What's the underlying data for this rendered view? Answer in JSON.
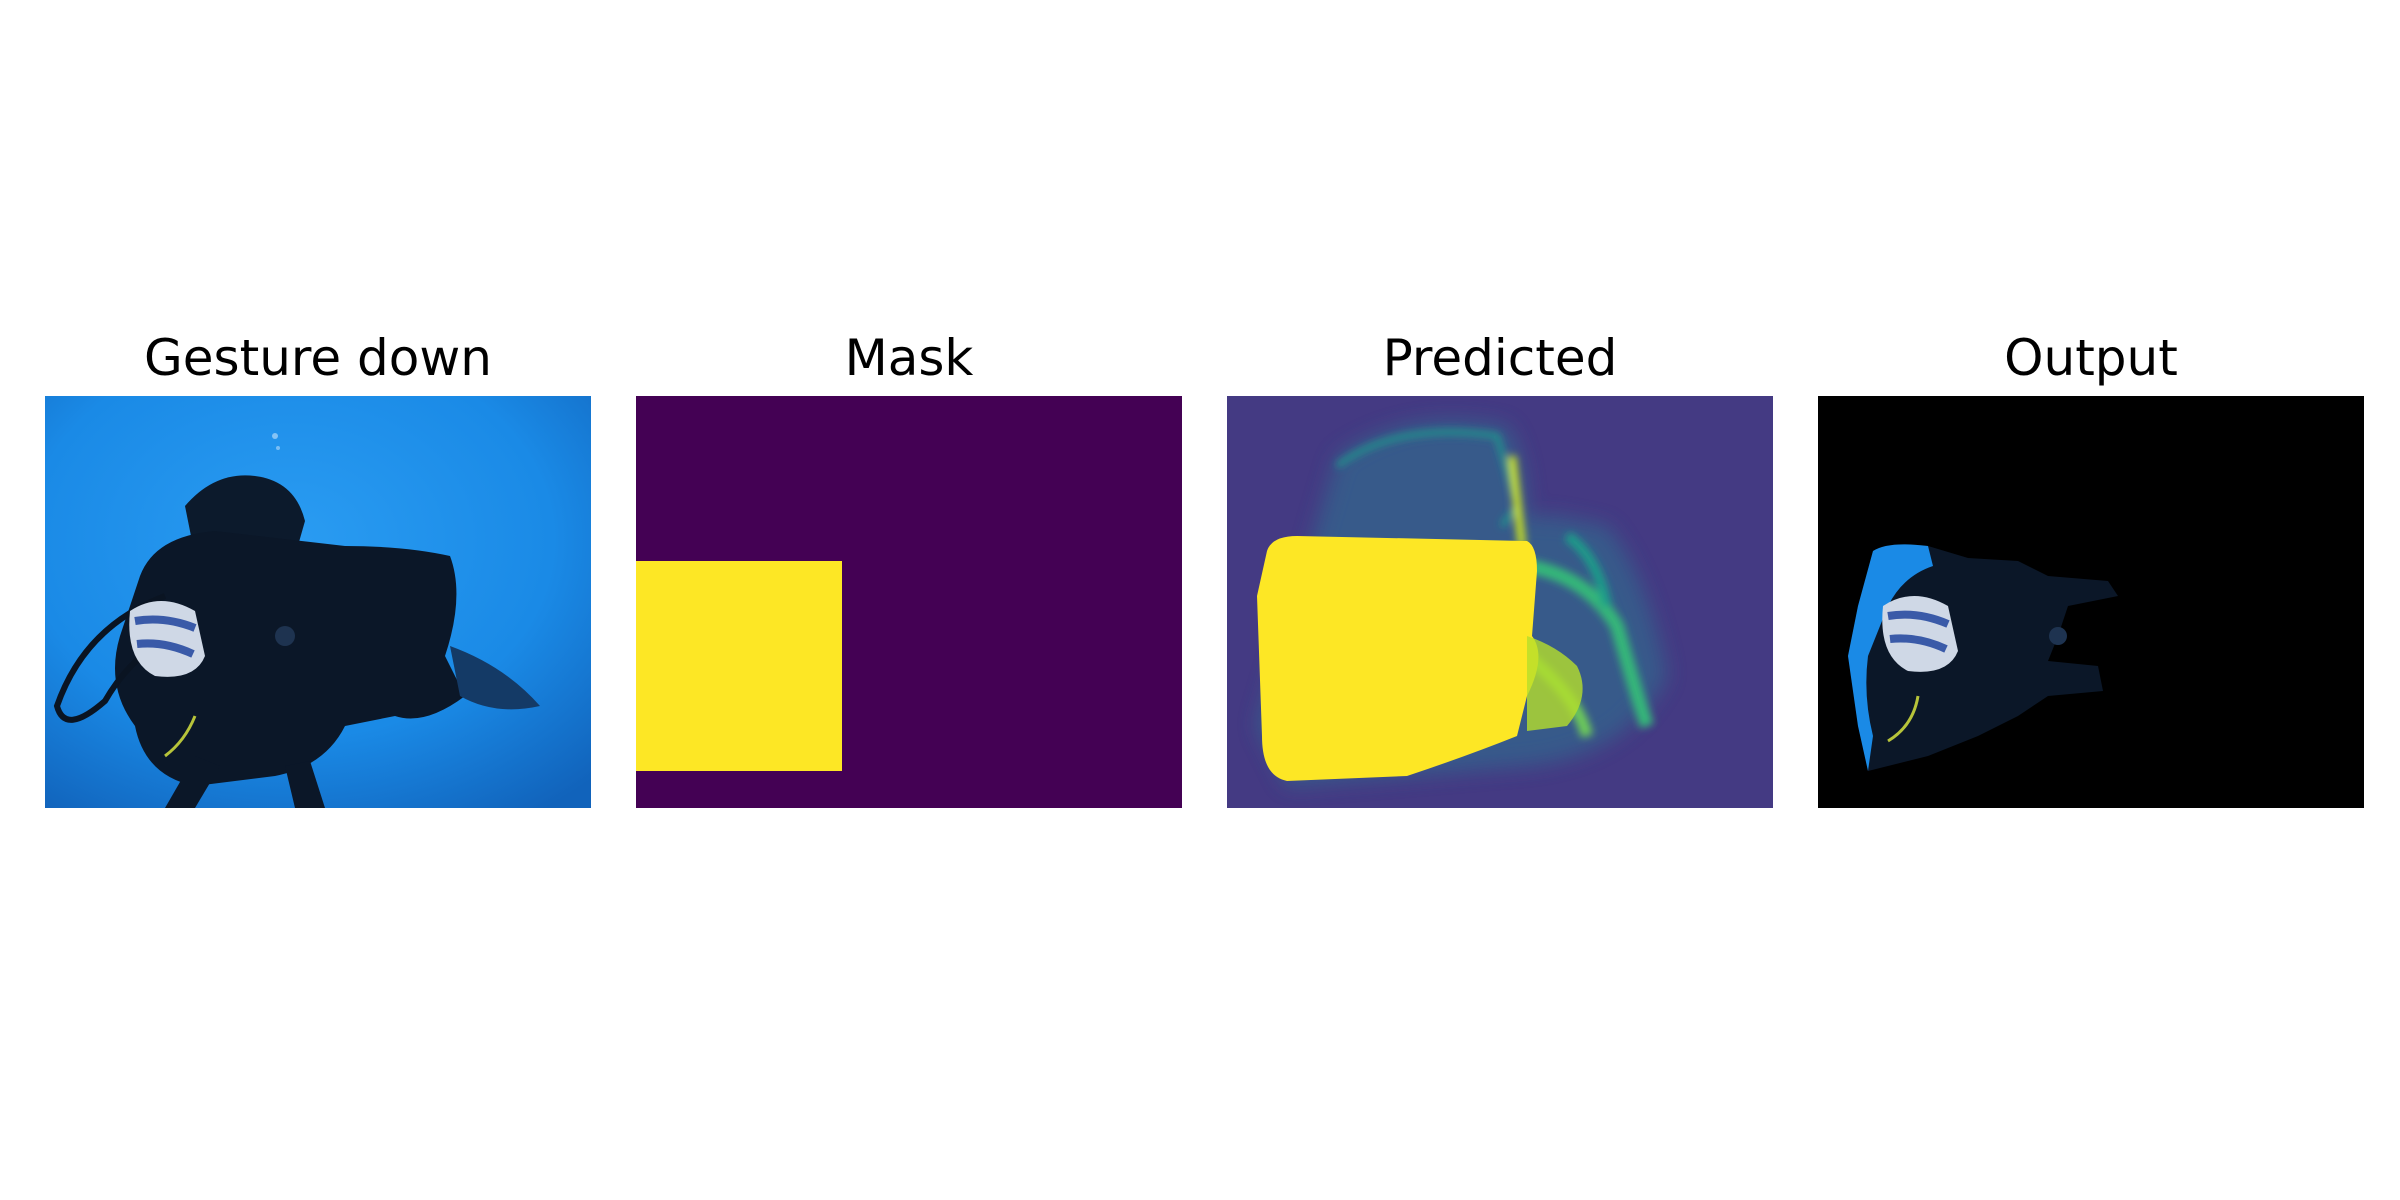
{
  "figure": {
    "panels": [
      {
        "id": "input",
        "title": "Gesture down",
        "image_description": "underwater photo of a scuba diver on a blue background"
      },
      {
        "id": "mask",
        "title": "Mask",
        "image_description": "yellow rectangle on dark purple background"
      },
      {
        "id": "predicted",
        "title": "Predicted",
        "image_description": "yellow blob heatmap on blue-purple background"
      },
      {
        "id": "output",
        "title": "Output",
        "image_description": "masked diver region on black background"
      }
    ]
  },
  "colors": {
    "mask_background": "#440154",
    "mask_foreground": "#fde725",
    "predicted_background": "#443a83",
    "predicted_mid": "#21918c",
    "predicted_foreground": "#fde725",
    "output_background": "#000000",
    "water_blue": "#1a8ae6",
    "diver_dark": "#0c1a2c"
  }
}
